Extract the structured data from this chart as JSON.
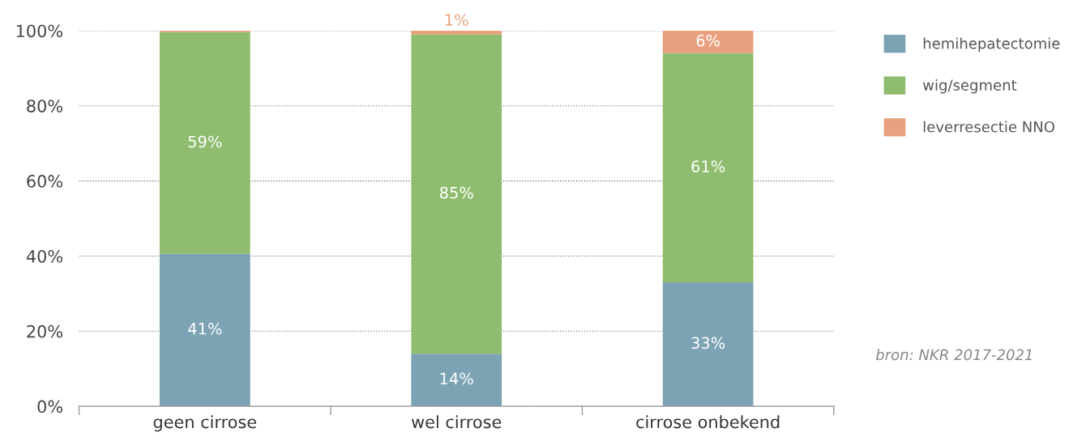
{
  "chart_data": {
    "type": "bar",
    "stacked": true,
    "categories": [
      "geen cirrose",
      "wel cirrose",
      "cirrose onbekend"
    ],
    "series": [
      {
        "name": "hemihepatectomie",
        "color": "#7ba3b4",
        "values": [
          40.6,
          14,
          33
        ],
        "value_labels": [
          "41%",
          "14%",
          "33%"
        ]
      },
      {
        "name": "wig/segment",
        "color": "#8fbc6e",
        "values": [
          59,
          85,
          61
        ],
        "value_labels": [
          "59%",
          "85%",
          "61%"
        ]
      },
      {
        "name": "leverresectie NNO",
        "color": "#e9a07e",
        "values": [
          0.4,
          1,
          6
        ],
        "value_labels": [
          null,
          "1%",
          "6%"
        ]
      }
    ],
    "ylim": [
      0,
      100
    ],
    "yticks": [
      {
        "value": 0,
        "label": "0%"
      },
      {
        "value": 20,
        "label": "20%"
      },
      {
        "value": 40,
        "label": "40%"
      },
      {
        "value": 60,
        "label": "60%"
      },
      {
        "value": 80,
        "label": "80%"
      },
      {
        "value": 100,
        "label": "100%"
      }
    ],
    "grid": "y",
    "legend": "top right",
    "annotations": [
      {
        "text": "bron: NKR 2017-2021"
      }
    ]
  }
}
